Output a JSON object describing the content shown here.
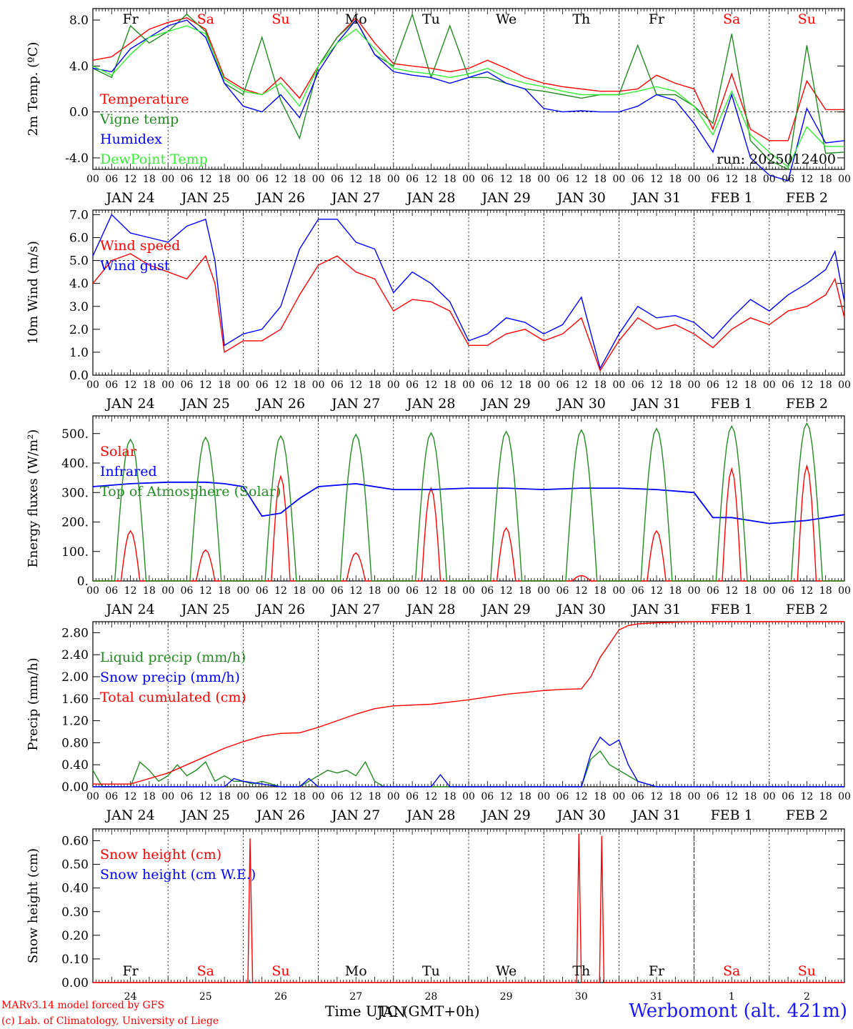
{
  "colors": {
    "temperature": "#ff0000",
    "vigne": "#228b22",
    "humidex": "#0000ff",
    "dewpoint": "#33ee33",
    "solar": "#ff0000",
    "infrared": "#0000ff",
    "toa": "#228b22",
    "liquid": "#228b22",
    "snowp": "#0000ff",
    "cumul": "#ff0000",
    "weekday": "#000000",
    "weekend": "#ff0000"
  },
  "days": [
    "JAN 24",
    "JAN 25",
    "JAN 26",
    "JAN 27",
    "JAN 28",
    "JAN 29",
    "JAN 30",
    "JAN 31",
    "FEB  1",
    "FEB  2"
  ],
  "weekdays": [
    "Fr",
    "Sa",
    "Su",
    "Mo",
    "Tu",
    "We",
    "Th",
    "Fr",
    "Sa",
    "Su"
  ],
  "weekend_flags": [
    false,
    true,
    true,
    false,
    false,
    false,
    false,
    false,
    true,
    true
  ],
  "hour_labels": [
    "00",
    "06",
    "12",
    "18"
  ],
  "day_numbers": [
    "24",
    "25",
    "26",
    "27",
    "28",
    "29",
    "30",
    "31",
    "1",
    "2"
  ],
  "footer": {
    "model": "MARv3.14 model forced by GFS",
    "lab": "(c) Lab. of Climatology, University of Liege",
    "time_label": "Time UTC (GMT+0h)",
    "station": "Werbomont (alt. 421m)"
  },
  "chart_data": [
    {
      "type": "line",
      "ylabel": "2m Temp. (ºC)",
      "ylim": [
        -5.0,
        9.0
      ],
      "yticks": [
        "-4.0",
        "0.0",
        "4.0",
        "8.0"
      ],
      "ytick_values": [
        -4,
        0,
        4,
        8
      ],
      "reference_line": 0,
      "annotation": "run: 2025012400",
      "x_unit": "hours since 2025-01-24 00 UTC",
      "series": [
        {
          "name": "Temperature",
          "color_key": "temperature",
          "x": [
            0,
            6,
            12,
            18,
            24,
            30,
            36,
            42,
            48,
            54,
            60,
            66,
            72,
            78,
            84,
            90,
            96,
            102,
            108,
            114,
            120,
            126,
            132,
            138,
            144,
            150,
            156,
            162,
            168,
            174,
            180,
            186,
            192,
            198,
            204,
            210,
            216,
            222,
            228,
            234,
            240
          ],
          "y": [
            4.5,
            4.8,
            6.0,
            7.2,
            7.8,
            8.2,
            7.2,
            3.0,
            2.0,
            1.5,
            3.0,
            1.2,
            4.0,
            6.5,
            8.2,
            6.0,
            4.2,
            4.0,
            3.8,
            3.5,
            3.8,
            4.5,
            3.8,
            3.0,
            2.5,
            2.2,
            2.0,
            1.8,
            1.8,
            2.0,
            3.2,
            2.5,
            2.0,
            -1.5,
            3.3,
            -1.5,
            -2.5,
            -2.5,
            2.7,
            0.2,
            0.2
          ]
        },
        {
          "name": "Vigne temp",
          "color_key": "vigne",
          "x": [
            0,
            6,
            12,
            18,
            24,
            30,
            36,
            42,
            48,
            54,
            60,
            66,
            72,
            78,
            84,
            90,
            96,
            102,
            108,
            114,
            120,
            126,
            132,
            138,
            144,
            150,
            156,
            162,
            168,
            174,
            180,
            186,
            192,
            198,
            204,
            210,
            216,
            222,
            228,
            234,
            240
          ],
          "y": [
            3.8,
            3.0,
            7.5,
            6.0,
            7.0,
            8.5,
            7.0,
            2.5,
            1.5,
            6.5,
            1.0,
            -2.3,
            4.0,
            6.5,
            8.0,
            5.0,
            4.0,
            8.5,
            3.0,
            7.5,
            3.0,
            3.0,
            2.5,
            2.0,
            1.8,
            1.5,
            1.2,
            1.5,
            1.5,
            5.8,
            1.5,
            1.5,
            0.5,
            -1.0,
            6.8,
            -2.5,
            -4.2,
            -5.0,
            5.8,
            -3.6,
            -3.5
          ]
        },
        {
          "name": "Humidex",
          "color_key": "humidex",
          "x": [
            0,
            6,
            12,
            18,
            24,
            30,
            36,
            42,
            48,
            54,
            60,
            66,
            72,
            78,
            84,
            90,
            96,
            102,
            108,
            114,
            120,
            126,
            132,
            138,
            144,
            150,
            156,
            162,
            168,
            174,
            180,
            186,
            192,
            198,
            204,
            210,
            216,
            222,
            228,
            234,
            240
          ],
          "y": [
            3.8,
            3.5,
            5.5,
            6.5,
            7.5,
            8.0,
            6.5,
            2.5,
            0.5,
            0.0,
            1.5,
            -0.5,
            3.5,
            6.0,
            8.0,
            5.0,
            3.5,
            3.2,
            3.0,
            2.5,
            3.0,
            3.5,
            2.5,
            2.0,
            0.3,
            0.0,
            0.1,
            0.0,
            0.0,
            0.5,
            1.5,
            1.0,
            -1.0,
            -3.5,
            1.5,
            -4.0,
            -5.5,
            -6.0,
            0.3,
            -2.7,
            -2.5
          ]
        },
        {
          "name": "DewPoint Temp",
          "color_key": "dewpoint",
          "x": [
            0,
            6,
            12,
            18,
            24,
            30,
            36,
            42,
            48,
            54,
            60,
            66,
            72,
            78,
            84,
            90,
            96,
            102,
            108,
            114,
            120,
            126,
            132,
            138,
            144,
            150,
            156,
            162,
            168,
            174,
            180,
            186,
            192,
            198,
            204,
            210,
            216,
            222,
            228,
            234,
            240
          ],
          "y": [
            4.0,
            3.2,
            5.0,
            6.5,
            7.0,
            7.5,
            6.8,
            2.8,
            1.8,
            1.5,
            2.5,
            0.5,
            4.0,
            6.0,
            7.2,
            5.5,
            3.8,
            3.5,
            3.3,
            3.0,
            3.3,
            3.8,
            3.0,
            2.5,
            2.2,
            1.8,
            1.5,
            1.5,
            1.5,
            1.8,
            2.2,
            1.8,
            0.5,
            -2.0,
            1.8,
            -2.0,
            -3.5,
            -4.8,
            -1.3,
            -3.0,
            -3.0
          ]
        }
      ]
    },
    {
      "type": "line",
      "ylabel": "10m Wind (m/s)",
      "ylim": [
        0.0,
        7.2
      ],
      "yticks": [
        "0.0",
        "1.0",
        "2.0",
        "3.0",
        "4.0",
        "5.0",
        "6.0",
        "7.0"
      ],
      "ytick_values": [
        0,
        1,
        2,
        3,
        4,
        5,
        6,
        7
      ],
      "reference_line": 5,
      "x_unit": "hours since 2025-01-24 00 UTC",
      "series": [
        {
          "name": "Wind speed",
          "color_key": "solar",
          "x": [
            0,
            6,
            12,
            18,
            24,
            30,
            36,
            39,
            42,
            48,
            54,
            60,
            66,
            72,
            78,
            84,
            90,
            96,
            102,
            108,
            114,
            120,
            126,
            132,
            138,
            144,
            150,
            156,
            162,
            168,
            174,
            180,
            186,
            192,
            198,
            204,
            210,
            216,
            222,
            228,
            234,
            237,
            240
          ],
          "y": [
            4.0,
            5.0,
            5.3,
            4.8,
            4.5,
            4.2,
            5.2,
            4.0,
            1.0,
            1.5,
            1.5,
            2.0,
            3.5,
            4.8,
            5.2,
            4.5,
            4.2,
            2.8,
            3.3,
            3.2,
            2.8,
            1.3,
            1.3,
            1.8,
            2.0,
            1.5,
            1.8,
            2.5,
            0.2,
            1.5,
            2.5,
            2.0,
            2.2,
            1.8,
            1.2,
            2.0,
            2.5,
            2.2,
            2.8,
            3.0,
            3.5,
            4.2,
            2.5
          ]
        },
        {
          "name": "Wind gust",
          "color_key": "infrared",
          "x": [
            0,
            6,
            12,
            18,
            24,
            30,
            36,
            39,
            42,
            48,
            54,
            60,
            66,
            72,
            78,
            84,
            90,
            96,
            102,
            108,
            114,
            120,
            126,
            132,
            138,
            144,
            150,
            156,
            162,
            168,
            174,
            180,
            186,
            192,
            198,
            204,
            210,
            216,
            222,
            228,
            234,
            237,
            240
          ],
          "y": [
            5.2,
            7.0,
            6.2,
            6.0,
            5.8,
            6.5,
            6.8,
            5.0,
            1.3,
            1.8,
            2.0,
            3.0,
            5.5,
            6.8,
            6.8,
            5.8,
            5.5,
            3.6,
            4.5,
            4.0,
            3.2,
            1.5,
            1.8,
            2.5,
            2.3,
            1.8,
            2.2,
            3.4,
            0.3,
            1.8,
            3.0,
            2.5,
            2.6,
            2.3,
            1.6,
            2.5,
            3.3,
            2.8,
            3.5,
            4.0,
            4.6,
            5.4,
            3.2
          ]
        }
      ]
    },
    {
      "type": "line",
      "ylabel": "Energy fluxes (W/m²)",
      "ylim": [
        0,
        560
      ],
      "yticks": [
        "0.",
        "100.",
        "200.",
        "300.",
        "400.",
        "500."
      ],
      "ytick_values": [
        0,
        100,
        200,
        300,
        400,
        500
      ],
      "x_unit": "hours since 2025-01-24 00 UTC",
      "series": [
        {
          "name": "Solar",
          "color_key": "solar",
          "peaks": [
            170,
            105,
            355,
            95,
            315,
            180,
            18,
            170,
            380,
            390
          ]
        },
        {
          "name": "Infrared",
          "color_key": "infrared",
          "x": [
            0,
            12,
            24,
            36,
            42,
            48,
            54,
            60,
            66,
            72,
            84,
            96,
            108,
            120,
            132,
            144,
            156,
            168,
            180,
            192,
            198,
            204,
            216,
            228,
            240
          ],
          "y": [
            320,
            330,
            335,
            335,
            330,
            320,
            220,
            230,
            280,
            320,
            330,
            310,
            310,
            315,
            315,
            310,
            315,
            315,
            310,
            300,
            215,
            215,
            195,
            205,
            225
          ]
        },
        {
          "name": "Top of Atmosphere (Solar)",
          "color_key": "toa",
          "peaks": [
            480,
            487,
            492,
            497,
            502,
            507,
            512,
            517,
            525,
            535
          ]
        }
      ]
    },
    {
      "type": "line",
      "ylabel": "Precip (mm/h)",
      "ylim": [
        0.0,
        3.0
      ],
      "yticks": [
        "0.00",
        "0.40",
        "0.80",
        "1.20",
        "1.60",
        "2.00",
        "2.40",
        "2.80"
      ],
      "ytick_values": [
        0,
        0.4,
        0.8,
        1.2,
        1.6,
        2.0,
        2.4,
        2.8
      ],
      "x_unit": "hours since 2025-01-24 00 UTC",
      "series": [
        {
          "name": "Liquid precip (mm/h)",
          "color_key": "liquid",
          "x": [
            0,
            3,
            6,
            9,
            12,
            15,
            18,
            21,
            24,
            27,
            30,
            33,
            36,
            39,
            42,
            45,
            48,
            51,
            54,
            60,
            66,
            72,
            75,
            78,
            81,
            84,
            87,
            90,
            93,
            96,
            108,
            120,
            132,
            144,
            150,
            156,
            159,
            162,
            165,
            168,
            171,
            174,
            177,
            180,
            192,
            204,
            216,
            228,
            240
          ],
          "y": [
            0.3,
            0.0,
            0.0,
            0.0,
            0.0,
            0.45,
            0.3,
            0.1,
            0.2,
            0.4,
            0.2,
            0.3,
            0.45,
            0.1,
            0.2,
            0.1,
            0.1,
            0.05,
            0.1,
            0.0,
            0.0,
            0.2,
            0.3,
            0.25,
            0.3,
            0.2,
            0.45,
            0.1,
            0.0,
            0.0,
            0.0,
            0.0,
            0.0,
            0.0,
            0.0,
            0.0,
            0.5,
            0.65,
            0.4,
            0.3,
            0.2,
            0.1,
            0.05,
            0.0,
            0.0,
            0.0,
            0.0,
            0.0,
            0.0
          ]
        },
        {
          "name": "Snow precip (mm/h)",
          "color_key": "snowp",
          "x": [
            0,
            42,
            45,
            48,
            54,
            60,
            66,
            69,
            72,
            108,
            111,
            114,
            144,
            156,
            159,
            162,
            165,
            168,
            171,
            174,
            177,
            180,
            192,
            204,
            216,
            240
          ],
          "y": [
            0.0,
            0.0,
            0.15,
            0.1,
            0.05,
            0.0,
            0.0,
            0.15,
            0.0,
            0.0,
            0.22,
            0.0,
            0.0,
            0.0,
            0.6,
            0.9,
            0.75,
            0.85,
            0.4,
            0.1,
            0.05,
            0.0,
            0.0,
            0.0,
            0.0,
            0.0
          ]
        },
        {
          "name": "Total cumulated (cm)",
          "color_key": "cumul",
          "x": [
            0,
            12,
            18,
            24,
            30,
            36,
            42,
            48,
            54,
            60,
            66,
            72,
            78,
            84,
            90,
            96,
            108,
            120,
            132,
            144,
            150,
            156,
            159,
            162,
            165,
            168,
            171,
            174,
            180,
            192,
            204,
            216,
            228,
            240
          ],
          "y": [
            0.05,
            0.05,
            0.15,
            0.25,
            0.4,
            0.55,
            0.7,
            0.82,
            0.92,
            0.97,
            0.98,
            1.08,
            1.2,
            1.32,
            1.42,
            1.47,
            1.5,
            1.58,
            1.68,
            1.75,
            1.77,
            1.78,
            2.0,
            2.35,
            2.6,
            2.85,
            2.93,
            2.96,
            2.98,
            3.0,
            3.0,
            3.0,
            3.0,
            3.0
          ]
        }
      ]
    },
    {
      "type": "line",
      "ylabel": "Snow height (cm)",
      "ylim": [
        0.0,
        0.65
      ],
      "yticks": [
        "0.00",
        "0.10",
        "0.20",
        "0.30",
        "0.40",
        "0.50",
        "0.60"
      ],
      "ytick_values": [
        0,
        0.1,
        0.2,
        0.3,
        0.4,
        0.5,
        0.6
      ],
      "x_unit": "hours since 2025-01-24 00 UTC",
      "series": [
        {
          "name": "Snow height (cm)",
          "color_key": "solar",
          "x": [
            0,
            49.5,
            50.2,
            51,
            154.5,
            155.2,
            156,
            161.8,
            162.5,
            163.2,
            240
          ],
          "y": [
            0,
            0,
            0.61,
            0,
            0,
            0.63,
            0,
            0,
            0.62,
            0,
            0
          ]
        },
        {
          "name": "Snow height (cm W.E.)",
          "color_key": "infrared",
          "x": [],
          "y": []
        }
      ]
    }
  ]
}
